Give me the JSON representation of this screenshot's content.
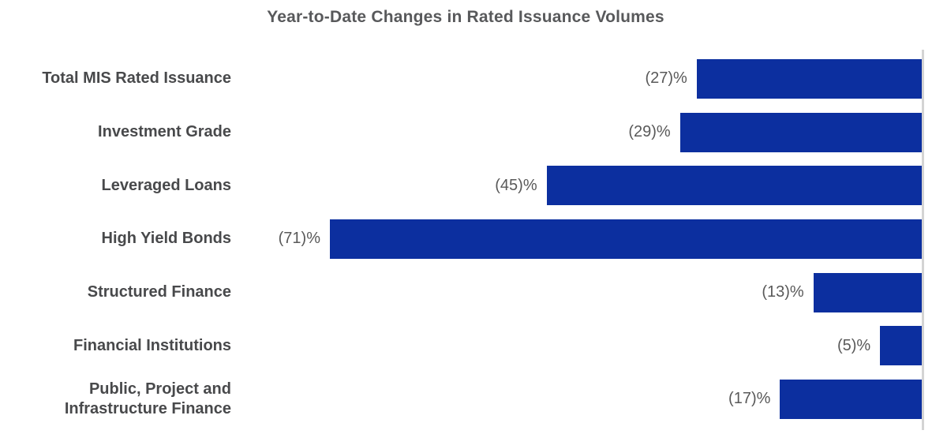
{
  "chart_data": {
    "type": "bar",
    "orientation": "horizontal",
    "title": "Year-to-Date Changes in Rated Issuance Volumes",
    "xlabel": "",
    "ylabel": "",
    "categories": [
      "Total MIS Rated Issuance",
      "Investment Grade",
      "Leveraged Loans",
      "High Yield Bonds",
      "Structured Finance",
      "Financial Institutions",
      "Public, Project and\nInfrastructure Finance"
    ],
    "values": [
      -27,
      -29,
      -45,
      -71,
      -13,
      -5,
      -17
    ],
    "value_labels": [
      "(27)%",
      "(29)%",
      "(45)%",
      "(71)%",
      "(13)%",
      "(5)%",
      "(17)%"
    ],
    "unit": "%",
    "xlim": [
      -82,
      0
    ],
    "grid": false,
    "legend_position": "none",
    "baseline_axis_side": "right",
    "colors": {
      "bar": "#0c2f9f",
      "axis_line": "#d4d4d4",
      "title_text": "#58595b",
      "category_text": "#48494b",
      "value_text": "#595959"
    }
  }
}
